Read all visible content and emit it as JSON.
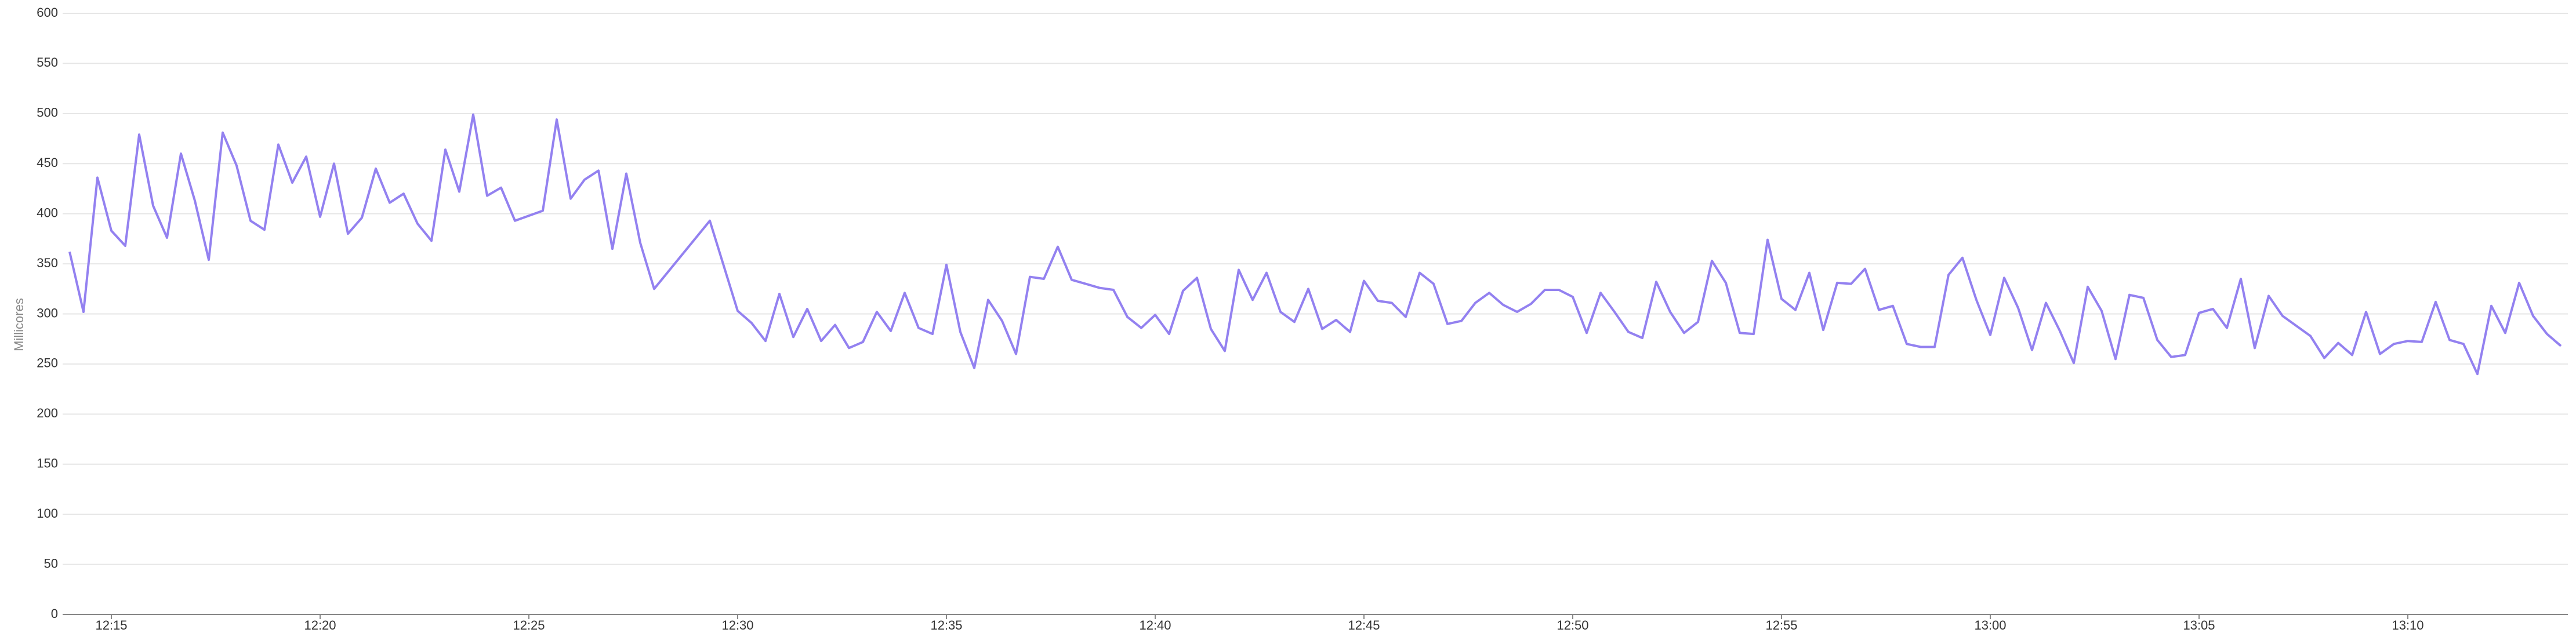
{
  "chart_data": {
    "type": "line",
    "y_label": "Millicores",
    "color": "#9381f0",
    "ylim": [
      0,
      600
    ],
    "yticks": [
      0,
      50,
      100,
      150,
      200,
      250,
      300,
      350,
      400,
      450,
      500,
      550,
      600
    ],
    "grid": true,
    "xlim": [
      "12:13:50",
      "13:13:50"
    ],
    "xticks": [
      {
        "value": "12:15:00",
        "label": "12:15"
      },
      {
        "value": "12:20:00",
        "label": "12:20"
      },
      {
        "value": "12:25:00",
        "label": "12:25"
      },
      {
        "value": "12:30:00",
        "label": "12:30"
      },
      {
        "value": "12:35:00",
        "label": "12:35"
      },
      {
        "value": "12:40:00",
        "label": "12:40"
      },
      {
        "value": "12:45:00",
        "label": "12:45"
      },
      {
        "value": "12:50:00",
        "label": "12:50"
      },
      {
        "value": "12:55:00",
        "label": "12:55"
      },
      {
        "value": "13:00:00",
        "label": "13:00"
      },
      {
        "value": "13:05:00",
        "label": "13:05"
      },
      {
        "value": "13:10:00",
        "label": "13:10"
      }
    ],
    "x": [
      "12:14:00",
      "12:14:20",
      "12:14:40",
      "12:15:00",
      "12:15:20",
      "12:15:40",
      "12:16:00",
      "12:16:20",
      "12:16:40",
      "12:17:00",
      "12:17:20",
      "12:17:40",
      "12:18:00",
      "12:18:20",
      "12:18:40",
      "12:19:00",
      "12:19:20",
      "12:19:40",
      "12:20:00",
      "12:20:20",
      "12:20:40",
      "12:21:00",
      "12:21:20",
      "12:21:40",
      "12:22:00",
      "12:22:20",
      "12:22:40",
      "12:23:00",
      "12:23:20",
      "12:23:40",
      "12:24:00",
      "12:24:20",
      "12:24:40",
      "12:25:00",
      "12:25:20",
      "12:25:40",
      "12:26:00",
      "12:26:20",
      "12:26:40",
      "12:27:00",
      "12:27:20",
      "12:27:40",
      "12:28:00",
      "12:29:20",
      "12:30:00",
      "12:30:20",
      "12:30:40",
      "12:31:00",
      "12:31:20",
      "12:31:40",
      "12:32:00",
      "12:32:20",
      "12:32:40",
      "12:33:00",
      "12:33:20",
      "12:33:40",
      "12:34:00",
      "12:34:20",
      "12:34:40",
      "12:35:00",
      "12:35:20",
      "12:35:40",
      "12:36:00",
      "12:36:20",
      "12:36:40",
      "12:37:00",
      "12:37:20",
      "12:37:40",
      "12:38:00",
      "12:38:20",
      "12:38:40",
      "12:39:00",
      "12:39:20",
      "12:39:40",
      "12:40:00",
      "12:40:20",
      "12:40:40",
      "12:41:00",
      "12:41:20",
      "12:41:40",
      "12:42:00",
      "12:42:20",
      "12:42:40",
      "12:43:00",
      "12:43:20",
      "12:43:40",
      "12:44:00",
      "12:44:20",
      "12:44:40",
      "12:45:00",
      "12:45:20",
      "12:45:40",
      "12:46:00",
      "12:46:20",
      "12:46:40",
      "12:47:00",
      "12:47:20",
      "12:47:40",
      "12:48:00",
      "12:48:20",
      "12:48:40",
      "12:49:00",
      "12:49:20",
      "12:49:40",
      "12:50:00",
      "12:50:20",
      "12:50:40",
      "12:51:00",
      "12:51:20",
      "12:51:40",
      "12:52:00",
      "12:52:20",
      "12:52:40",
      "12:53:00",
      "12:53:20",
      "12:53:40",
      "12:54:00",
      "12:54:20",
      "12:54:40",
      "12:55:00",
      "12:55:20",
      "12:55:40",
      "12:56:00",
      "12:56:20",
      "12:56:40",
      "12:57:00",
      "12:57:20",
      "12:57:40",
      "12:58:00",
      "12:58:20",
      "12:58:40",
      "12:59:00",
      "12:59:20",
      "12:59:40",
      "13:00:00",
      "13:00:20",
      "13:00:40",
      "13:01:00",
      "13:01:20",
      "13:01:40",
      "13:02:00",
      "13:02:20",
      "13:02:40",
      "13:03:00",
      "13:03:20",
      "13:03:40",
      "13:04:00",
      "13:04:20",
      "13:04:40",
      "13:05:00",
      "13:05:20",
      "13:05:40",
      "13:06:00",
      "13:06:20",
      "13:06:40",
      "13:07:00",
      "13:07:20",
      "13:07:40",
      "13:08:00",
      "13:08:20",
      "13:08:40",
      "13:09:00",
      "13:09:20",
      "13:09:40",
      "13:10:00",
      "13:10:20",
      "13:10:40",
      "13:11:00",
      "13:11:20",
      "13:11:40",
      "13:12:00",
      "13:12:20",
      "13:12:40",
      "13:13:00",
      "13:13:20",
      "13:13:40"
    ],
    "values": [
      362,
      302,
      436,
      383,
      368,
      479,
      408,
      376,
      460,
      413,
      354,
      481,
      448,
      393,
      384,
      469,
      431,
      457,
      397,
      450,
      380,
      396,
      445,
      411,
      420,
      390,
      373,
      464,
      422,
      499,
      418,
      426,
      393,
      398,
      403,
      494,
      415,
      434,
      443,
      365,
      440,
      371,
      325,
      393,
      303,
      291,
      273,
      320,
      277,
      305,
      273,
      289,
      266,
      272,
      302,
      283,
      321,
      286,
      280,
      349,
      282,
      246,
      314,
      293,
      260,
      337,
      335,
      367,
      334,
      330,
      326,
      324,
      297,
      286,
      299,
      280,
      323,
      336,
      285,
      263,
      344,
      314,
      341,
      302,
      292,
      325,
      285,
      294,
      282,
      333,
      313,
      311,
      297,
      341,
      330,
      290,
      293,
      311,
      321,
      309,
      302,
      310,
      324,
      324,
      317,
      281,
      321,
      302,
      282,
      276,
      332,
      302,
      281,
      292,
      353,
      331,
      281,
      280,
      374,
      315,
      304,
      341,
      284,
      331,
      330,
      345,
      304,
      308,
      270,
      267,
      267,
      339,
      356,
      314,
      279,
      336,
      306,
      264,
      311,
      283,
      251,
      327,
      303,
      255,
      319,
      316,
      274,
      257,
      259,
      301,
      305,
      286,
      335,
      266,
      318,
      298,
      288,
      278,
      256,
      271,
      259,
      302,
      260,
      270,
      273,
      272,
      312,
      274,
      270,
      240,
      308,
      281,
      331,
      298,
      280,
      268
    ]
  }
}
